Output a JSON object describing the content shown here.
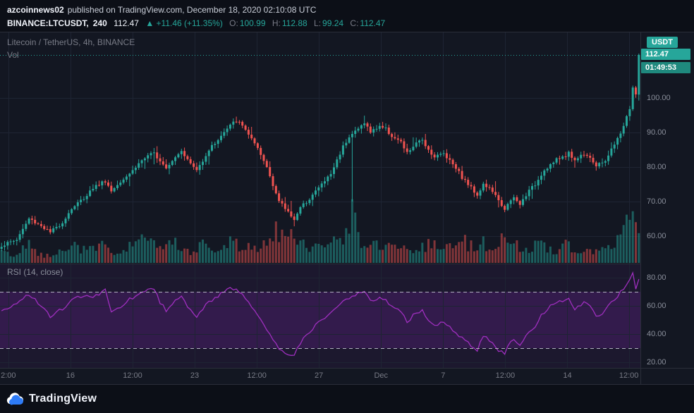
{
  "publish_bar": {
    "username": "azcoinnews02",
    "published_text": "published on TradingView.com, December 18, 2020 02:10:08 UTC"
  },
  "symbol_bar": {
    "symbol": "BINANCE:LTCUSDT,",
    "interval": "240",
    "last_price": "112.47",
    "change": "▲ +11.46 (+11.35%)",
    "ohlc": [
      {
        "label": "O:",
        "value": "100.99"
      },
      {
        "label": "H:",
        "value": "112.88"
      },
      {
        "label": "L:",
        "value": "99.24"
      },
      {
        "label": "C:",
        "value": "112.47"
      }
    ]
  },
  "main_pane": {
    "watermark_title": "Litecoin / TetherUS, 4h, BINANCE",
    "volume_label": "Vol",
    "price_axis": {
      "currency": "USDT",
      "ticks": [
        {
          "label": "100.00",
          "value": 100
        },
        {
          "label": "90.00",
          "value": 90
        },
        {
          "label": "80.00",
          "value": 80
        },
        {
          "label": "70.00",
          "value": 70
        },
        {
          "label": "60.00",
          "value": 60
        }
      ],
      "last_price_badge": "112.47",
      "countdown_badge": "01:49:53"
    }
  },
  "rsi_pane": {
    "label": "RSI (14, close)",
    "ticks": [
      {
        "label": "80.00",
        "value": 80
      },
      {
        "label": "60.00",
        "value": 60
      },
      {
        "label": "40.00",
        "value": 40
      },
      {
        "label": "20.00",
        "value": 20
      }
    ]
  },
  "time_axis": {
    "ticks": [
      {
        "label": "2:00",
        "p": 0.013
      },
      {
        "label": "16",
        "p": 0.11
      },
      {
        "label": "12:00",
        "p": 0.207
      },
      {
        "label": "23",
        "p": 0.304
      },
      {
        "label": "12:00",
        "p": 0.401
      },
      {
        "label": "27",
        "p": 0.498
      },
      {
        "label": "Dec",
        "p": 0.595
      },
      {
        "label": "7",
        "p": 0.692
      },
      {
        "label": "12:00",
        "p": 0.789
      },
      {
        "label": "14",
        "p": 0.886
      },
      {
        "label": "12:00",
        "p": 0.982
      }
    ]
  },
  "footer": {
    "brand": "TradingView"
  },
  "colors": {
    "up": "#26a69a",
    "down": "#ef5350",
    "grid": "#1e2433",
    "pane_border": "#2a2e39",
    "band_line": "#c9ccd6",
    "rsi_line": "#9f2fbf",
    "rsi_tint": "rgba(136,41,185,0.22)",
    "rsi_tint_weak": "rgba(136,41,185,0.08)"
  },
  "chart_data": {
    "type": "candlestick",
    "title": "Litecoin / TetherUS, 4h, BINANCE",
    "symbol": "BINANCE:LTCUSDT",
    "interval": "4h",
    "candle_count": 210,
    "price_range": [
      52,
      119
    ],
    "price_gridlines": [
      60,
      70,
      80,
      90,
      100
    ],
    "current_price": 112.47,
    "ohlc_last": {
      "open": 100.99,
      "high": 112.88,
      "low": 99.24,
      "close": 112.47
    },
    "close_path": [
      [
        0,
        57.2
      ],
      [
        5,
        59
      ],
      [
        9,
        65
      ],
      [
        13,
        63
      ],
      [
        16,
        61
      ],
      [
        20,
        64
      ],
      [
        23,
        68
      ],
      [
        27,
        71
      ],
      [
        30,
        74
      ],
      [
        34,
        76
      ],
      [
        36,
        73
      ],
      [
        39,
        76
      ],
      [
        43,
        79
      ],
      [
        46,
        82
      ],
      [
        50,
        84
      ],
      [
        52,
        82
      ],
      [
        54,
        80
      ],
      [
        57,
        83
      ],
      [
        59,
        85
      ],
      [
        61,
        82
      ],
      [
        64,
        79
      ],
      [
        66,
        82
      ],
      [
        68,
        85
      ],
      [
        71,
        88
      ],
      [
        73,
        90
      ],
      [
        75,
        92
      ],
      [
        77,
        93.5
      ],
      [
        80,
        91
      ],
      [
        82,
        88
      ],
      [
        84,
        85
      ],
      [
        87,
        80
      ],
      [
        89,
        75
      ],
      [
        91,
        70
      ],
      [
        94,
        67
      ],
      [
        96,
        65
      ],
      [
        98,
        68
      ],
      [
        101,
        71
      ],
      [
        103,
        73
      ],
      [
        105,
        75
      ],
      [
        108,
        78
      ],
      [
        110,
        82
      ],
      [
        112,
        86
      ],
      [
        114,
        89
      ],
      [
        117,
        91
      ],
      [
        119,
        93
      ],
      [
        121,
        90
      ],
      [
        124,
        92
      ],
      [
        126,
        91
      ],
      [
        128,
        89
      ],
      [
        131,
        87
      ],
      [
        133,
        84
      ],
      [
        135,
        86
      ],
      [
        138,
        88
      ],
      [
        140,
        85
      ],
      [
        142,
        83
      ],
      [
        145,
        84
      ],
      [
        147,
        82
      ],
      [
        149,
        80
      ],
      [
        151,
        77
      ],
      [
        154,
        74
      ],
      [
        156,
        72
      ],
      [
        158,
        75
      ],
      [
        161,
        73
      ],
      [
        163,
        70
      ],
      [
        165,
        68
      ],
      [
        168,
        71
      ],
      [
        170,
        69
      ],
      [
        172,
        72
      ],
      [
        175,
        75
      ],
      [
        177,
        78
      ],
      [
        179,
        80
      ],
      [
        182,
        82
      ],
      [
        184,
        83
      ],
      [
        186,
        84
      ],
      [
        188,
        82
      ],
      [
        191,
        84
      ],
      [
        193,
        83
      ],
      [
        195,
        80
      ],
      [
        198,
        82
      ],
      [
        200,
        85
      ],
      [
        202,
        88
      ],
      [
        204,
        92
      ],
      [
        206,
        97
      ],
      [
        207,
        103
      ],
      [
        208,
        101
      ],
      [
        209,
        112.47
      ]
    ],
    "wick_specials": [
      {
        "i": 77,
        "high": 94.6
      },
      {
        "i": 96,
        "low": 62.8
      },
      {
        "i": 115,
        "low": 70
      },
      {
        "i": 209,
        "open": 100.99,
        "close": 112.47,
        "high": 112.88,
        "low": 99.24
      }
    ],
    "volume_path": [
      [
        0,
        18
      ],
      [
        5,
        12
      ],
      [
        9,
        30
      ],
      [
        13,
        14
      ],
      [
        16,
        10
      ],
      [
        20,
        26
      ],
      [
        23,
        34
      ],
      [
        27,
        22
      ],
      [
        30,
        26
      ],
      [
        34,
        36
      ],
      [
        36,
        18
      ],
      [
        39,
        16
      ],
      [
        43,
        30
      ],
      [
        46,
        38
      ],
      [
        50,
        28
      ],
      [
        52,
        20
      ],
      [
        54,
        24
      ],
      [
        57,
        34
      ],
      [
        59,
        22
      ],
      [
        61,
        18
      ],
      [
        64,
        26
      ],
      [
        66,
        34
      ],
      [
        68,
        24
      ],
      [
        71,
        30
      ],
      [
        73,
        26
      ],
      [
        75,
        38
      ],
      [
        77,
        30
      ],
      [
        80,
        24
      ],
      [
        82,
        28
      ],
      [
        84,
        22
      ],
      [
        87,
        40
      ],
      [
        89,
        48
      ],
      [
        91,
        52
      ],
      [
        94,
        44
      ],
      [
        96,
        40
      ],
      [
        98,
        30
      ],
      [
        101,
        24
      ],
      [
        103,
        28
      ],
      [
        105,
        22
      ],
      [
        108,
        30
      ],
      [
        110,
        34
      ],
      [
        112,
        40
      ],
      [
        114,
        55
      ],
      [
        115,
        100
      ],
      [
        117,
        44
      ],
      [
        119,
        36
      ],
      [
        121,
        30
      ],
      [
        124,
        26
      ],
      [
        126,
        22
      ],
      [
        128,
        26
      ],
      [
        131,
        30
      ],
      [
        133,
        24
      ],
      [
        135,
        20
      ],
      [
        138,
        26
      ],
      [
        140,
        34
      ],
      [
        142,
        28
      ],
      [
        145,
        22
      ],
      [
        147,
        26
      ],
      [
        149,
        30
      ],
      [
        151,
        36
      ],
      [
        154,
        30
      ],
      [
        156,
        26
      ],
      [
        158,
        32
      ],
      [
        161,
        24
      ],
      [
        163,
        34
      ],
      [
        165,
        40
      ],
      [
        168,
        30
      ],
      [
        170,
        26
      ],
      [
        172,
        24
      ],
      [
        175,
        28
      ],
      [
        177,
        32
      ],
      [
        179,
        26
      ],
      [
        182,
        22
      ],
      [
        184,
        26
      ],
      [
        186,
        30
      ],
      [
        188,
        24
      ],
      [
        191,
        28
      ],
      [
        193,
        22
      ],
      [
        195,
        26
      ],
      [
        198,
        30
      ],
      [
        200,
        36
      ],
      [
        202,
        40
      ],
      [
        205,
        60
      ],
      [
        207,
        85
      ],
      [
        208,
        70
      ],
      [
        209,
        55
      ]
    ],
    "rsi": {
      "range": [
        16,
        90
      ],
      "bands": [
        70,
        30
      ],
      "path": [
        [
          0,
          56
        ],
        [
          5,
          62
        ],
        [
          9,
          68
        ],
        [
          13,
          60
        ],
        [
          16,
          52
        ],
        [
          20,
          58
        ],
        [
          23,
          64
        ],
        [
          27,
          68
        ],
        [
          30,
          66
        ],
        [
          34,
          71
        ],
        [
          36,
          55
        ],
        [
          39,
          60
        ],
        [
          43,
          66
        ],
        [
          46,
          70
        ],
        [
          50,
          72
        ],
        [
          52,
          62
        ],
        [
          54,
          57
        ],
        [
          57,
          64
        ],
        [
          59,
          68
        ],
        [
          61,
          60
        ],
        [
          64,
          53
        ],
        [
          66,
          58
        ],
        [
          68,
          63
        ],
        [
          71,
          67
        ],
        [
          73,
          70
        ],
        [
          75,
          72
        ],
        [
          77,
          73
        ],
        [
          80,
          66
        ],
        [
          82,
          60
        ],
        [
          84,
          54
        ],
        [
          87,
          44
        ],
        [
          89,
          36
        ],
        [
          91,
          30
        ],
        [
          94,
          26
        ],
        [
          96,
          25
        ],
        [
          98,
          34
        ],
        [
          101,
          41
        ],
        [
          103,
          46
        ],
        [
          105,
          50
        ],
        [
          108,
          55
        ],
        [
          110,
          60
        ],
        [
          112,
          64
        ],
        [
          114,
          66
        ],
        [
          117,
          69
        ],
        [
          119,
          71
        ],
        [
          121,
          63
        ],
        [
          124,
          66
        ],
        [
          126,
          64
        ],
        [
          128,
          60
        ],
        [
          131,
          56
        ],
        [
          133,
          49
        ],
        [
          135,
          53
        ],
        [
          138,
          57
        ],
        [
          140,
          50
        ],
        [
          142,
          46
        ],
        [
          145,
          49
        ],
        [
          147,
          45
        ],
        [
          149,
          42
        ],
        [
          151,
          37
        ],
        [
          154,
          32
        ],
        [
          156,
          29
        ],
        [
          158,
          39
        ],
        [
          161,
          34
        ],
        [
          163,
          29
        ],
        [
          165,
          27
        ],
        [
          168,
          37
        ],
        [
          170,
          32
        ],
        [
          172,
          39
        ],
        [
          175,
          46
        ],
        [
          177,
          53
        ],
        [
          179,
          58
        ],
        [
          182,
          62
        ],
        [
          184,
          64
        ],
        [
          186,
          65
        ],
        [
          188,
          58
        ],
        [
          191,
          63
        ],
        [
          193,
          60
        ],
        [
          195,
          52
        ],
        [
          198,
          57
        ],
        [
          200,
          63
        ],
        [
          202,
          67
        ],
        [
          204,
          72
        ],
        [
          205,
          76
        ],
        [
          207,
          84
        ],
        [
          208,
          72
        ],
        [
          209,
          80
        ]
      ]
    }
  }
}
